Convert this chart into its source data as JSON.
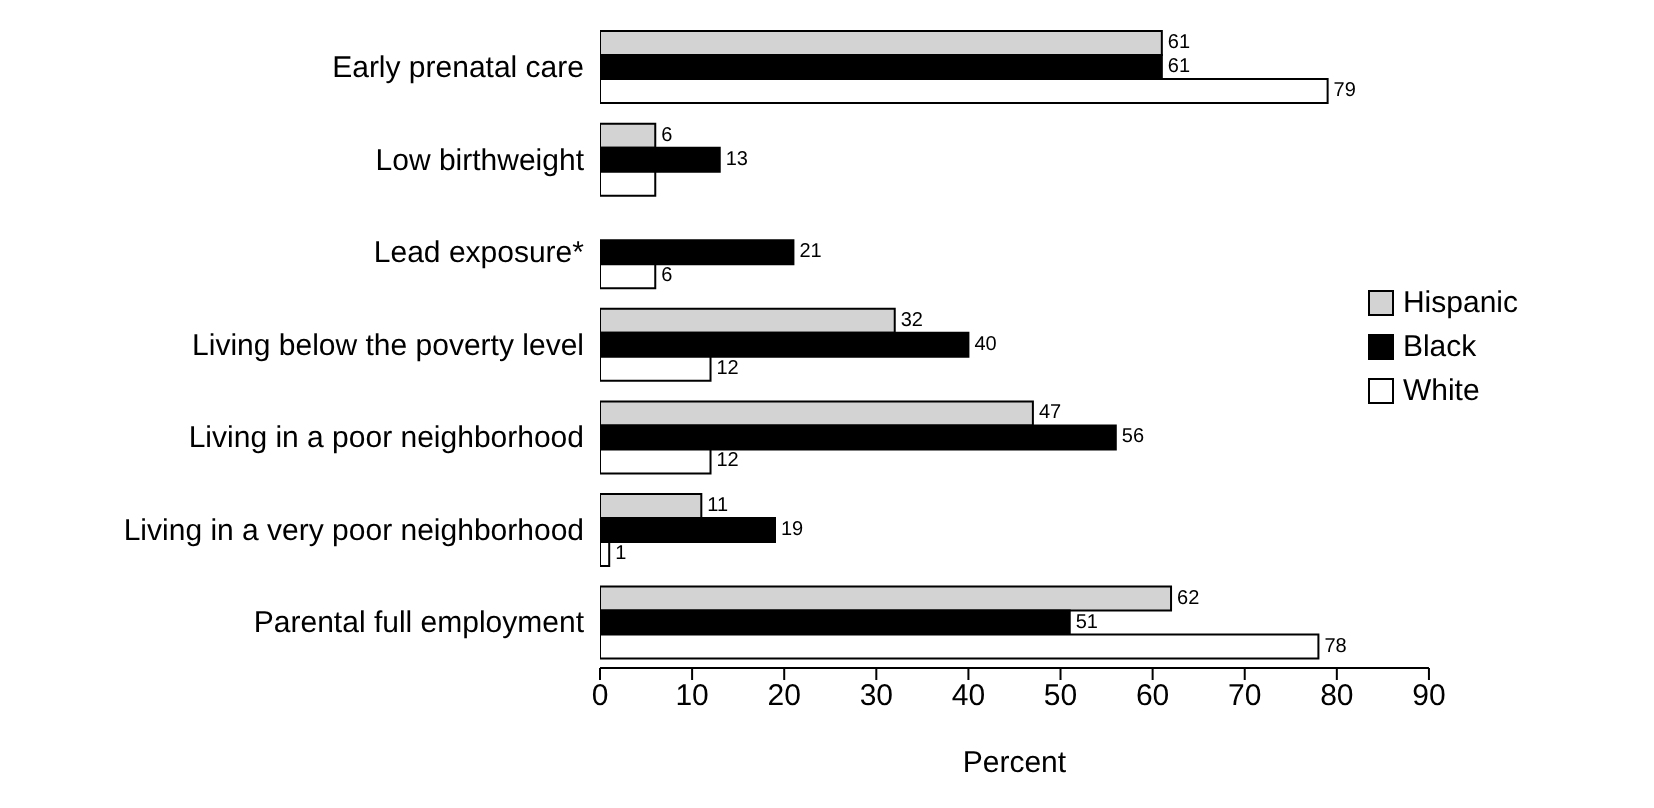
{
  "chart_data": {
    "type": "bar",
    "orientation": "horizontal",
    "xlabel": "Percent",
    "categories": [
      "Early prenatal care",
      "Low birthweight",
      "Lead exposure*",
      "Living below the poverty level",
      "Living in a poor neighborhood",
      "Living in a very poor neighborhood",
      "Parental full employment"
    ],
    "series": [
      {
        "name": "Hispanic",
        "color": "#d3d3d3",
        "values": [
          61,
          6,
          null,
          32,
          47,
          11,
          62
        ],
        "value_labels": [
          "61",
          "6",
          null,
          "32",
          "47",
          "11",
          "62"
        ]
      },
      {
        "name": "Black",
        "color": "#000000",
        "values": [
          61,
          13,
          21,
          40,
          56,
          19,
          51
        ],
        "value_labels": [
          "61",
          "13",
          "21",
          "40",
          "56",
          "19",
          "51"
        ]
      },
      {
        "name": "White",
        "color": "#ffffff",
        "values": [
          79,
          6,
          6,
          12,
          12,
          1,
          78
        ],
        "value_labels": [
          "79",
          null,
          "6",
          "12",
          "12",
          "1",
          "78"
        ]
      }
    ],
    "xlim": [
      0,
      90
    ],
    "xticks": [
      0,
      10,
      20,
      30,
      40,
      50,
      60,
      70,
      80,
      90
    ],
    "grid": false,
    "legend": "right"
  }
}
